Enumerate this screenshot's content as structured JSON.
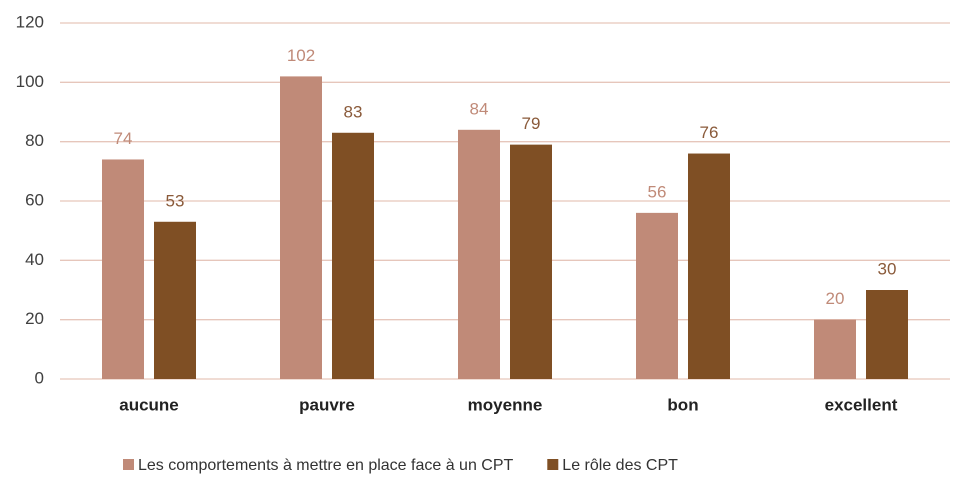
{
  "chart_data": {
    "type": "bar",
    "categories": [
      "aucune",
      "pauvre",
      "moyenne",
      "bon",
      "excellent"
    ],
    "series": [
      {
        "name": "Les comportements à mettre en place face à un CPT",
        "color": "#c08a78",
        "values": [
          74,
          102,
          84,
          56,
          20
        ]
      },
      {
        "name": "Le rôle des CPT",
        "color": "#7f4f24",
        "values": [
          53,
          83,
          79,
          76,
          30
        ]
      }
    ],
    "ylim": [
      0,
      120
    ],
    "yticks": [
      0,
      20,
      40,
      60,
      80,
      100,
      120
    ],
    "grid": true,
    "legend": "bottom"
  }
}
